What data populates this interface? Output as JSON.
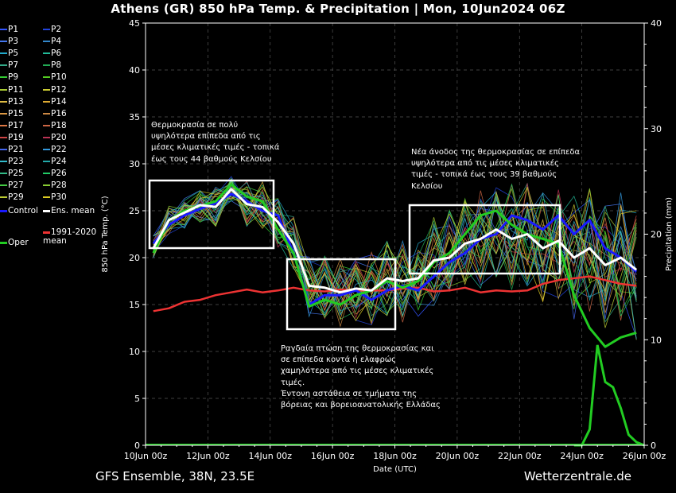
{
  "title": "Athens  (GR)  850 hPa Temp. & Precipitation | Mon, 10Jun2024 06Z",
  "footer": {
    "left": "GFS Ensemble, 38N, 23.5E",
    "right": "Wetterzentrale.de"
  },
  "colors": {
    "background": "#000000",
    "control": "#1a1aff",
    "ens_mean": "#ffffff",
    "oper": "#22cc22",
    "climatology": "#ee3333",
    "annotation_box": "#ffffff"
  },
  "legend": [
    {
      "label": "P1",
      "color": "#3355ff"
    },
    {
      "label": "P2",
      "color": "#2244dd"
    },
    {
      "label": "P3",
      "color": "#4477ee"
    },
    {
      "label": "P4",
      "color": "#3388cc"
    },
    {
      "label": "P5",
      "color": "#22aacc"
    },
    {
      "label": "P6",
      "color": "#22bb99"
    },
    {
      "label": "P7",
      "color": "#33aa88"
    },
    {
      "label": "P8",
      "color": "#22aa55"
    },
    {
      "label": "P9",
      "color": "#33cc33"
    },
    {
      "label": "P10",
      "color": "#55cc22"
    },
    {
      "label": "P11",
      "color": "#aacc33"
    },
    {
      "label": "P12",
      "color": "#cccc33"
    },
    {
      "label": "P13",
      "color": "#ddbb44"
    },
    {
      "label": "P14",
      "color": "#ddaa33"
    },
    {
      "label": "P15",
      "color": "#dd9944"
    },
    {
      "label": "P16",
      "color": "#cc8844"
    },
    {
      "label": "P17",
      "color": "#dd7744"
    },
    {
      "label": "P18",
      "color": "#cc6644"
    },
    {
      "label": "P19",
      "color": "#cc4444"
    },
    {
      "label": "P20",
      "color": "#bb3355"
    },
    {
      "label": "P21",
      "color": "#4466ee"
    },
    {
      "label": "P22",
      "color": "#3399dd"
    },
    {
      "label": "P23",
      "color": "#33bbcc"
    },
    {
      "label": "P24",
      "color": "#22aaaa"
    },
    {
      "label": "P25",
      "color": "#33bb88"
    },
    {
      "label": "P26",
      "color": "#22cc66"
    },
    {
      "label": "P27",
      "color": "#44cc44"
    },
    {
      "label": "P28",
      "color": "#88cc33"
    },
    {
      "label": "P29",
      "color": "#bbcc33"
    },
    {
      "label": "P30",
      "color": "#ddcc22"
    },
    {
      "label": "Control",
      "color": "#1a1aff"
    },
    {
      "label": "Ens. mean",
      "color": "#ffffff"
    },
    {
      "label": "Oper",
      "color": "#22cc22"
    },
    {
      "label": "1991-2020 mean",
      "color": "#ee3333"
    }
  ],
  "annotations": [
    {
      "id": "heat1",
      "lines": [
        "Θερμοκρασία σε πολύ",
        "υψηλότερα επίπεδα από τις",
        "μέσες κλιματικές τιμές - τοπικά",
        "έως τους 44 βαθμούς Κελσίου"
      ]
    },
    {
      "id": "drop",
      "lines": [
        "Ραγδαία πτώση της θερμοκρασίας και",
        "σε επίπεδα κοντά ή ελαφρώς",
        "χαμηλότερα από τις μέσες κλιματικές",
        "τιμές.",
        "Έντονη αστάθεια σε τμήματα της",
        "βόρειας και βορειοανατολικής Ελλάδας"
      ]
    },
    {
      "id": "heat2",
      "lines": [
        "Νέα άνοδος της θερμοκρασίας σε επίπεδα",
        "υψηλότερα από τις μέσες κλιματικές",
        "τιμές - τοπικά έως τους 39 βαθμούς",
        "Κελσίου"
      ]
    }
  ],
  "chart_data": {
    "type": "line",
    "ylabel_left": "850 hPa Temp. (°C)",
    "ylabel_right": "Precipitation (mm)",
    "xlabel": "Date (UTC)",
    "x_ticks": [
      "10Jun 00z",
      "12Jun 00z",
      "14Jun 00z",
      "16Jun 00z",
      "18Jun 00z",
      "20Jun 00z",
      "22Jun 00z",
      "24Jun 00z",
      "26Jun 00z"
    ],
    "x_range_hours": [
      0,
      384
    ],
    "ylim_left": [
      0,
      45
    ],
    "ylim_right": [
      0,
      40
    ],
    "y_ticks_left": [
      0,
      5,
      10,
      15,
      20,
      25,
      30,
      35,
      40,
      45
    ],
    "y_ticks_right": [
      0,
      10,
      20,
      30,
      40
    ],
    "grid": true,
    "x_hours": [
      6,
      18,
      30,
      42,
      54,
      66,
      78,
      90,
      102,
      114,
      126,
      138,
      150,
      162,
      174,
      186,
      198,
      210,
      222,
      234,
      246,
      258,
      270,
      282,
      294,
      306,
      318,
      330,
      342,
      354,
      366,
      378
    ],
    "series": [
      {
        "name": "Control",
        "values": [
          21.5,
          23.5,
          24.5,
          25.2,
          25.8,
          26.8,
          26.0,
          25.0,
          24.5,
          20.5,
          15.0,
          16.0,
          16.0,
          16.5,
          15.5,
          16.5,
          17.0,
          16.5,
          18.0,
          19.5,
          20.5,
          22.0,
          22.5,
          24.5,
          24.0,
          23.0,
          24.5,
          22.5,
          24.0,
          21.0,
          20.0,
          18.5
        ]
      },
      {
        "name": "Ens. mean",
        "values": [
          21.0,
          24.0,
          24.8,
          25.6,
          25.4,
          27.3,
          25.7,
          25.4,
          23.8,
          21.5,
          17.0,
          16.8,
          16.3,
          16.7,
          16.5,
          17.8,
          17.5,
          17.8,
          19.7,
          20.0,
          21.5,
          22.0,
          23.0,
          22.0,
          22.5,
          21.0,
          21.8,
          20.0,
          21.0,
          19.2,
          20.0,
          18.7
        ]
      },
      {
        "name": "Oper",
        "values": [
          20.5,
          24.0,
          25.0,
          25.5,
          26.0,
          27.8,
          26.5,
          26.0,
          23.0,
          20.5,
          14.8,
          15.5,
          15.0,
          16.0,
          16.5,
          17.5,
          16.8,
          17.5,
          19.5,
          20.5,
          22.5,
          24.5,
          25.0,
          23.5,
          22.5,
          22.0,
          21.5,
          16.0,
          12.5,
          10.5,
          11.5,
          12.0
        ]
      },
      {
        "name": "1991-2020 mean",
        "values": [
          14.3,
          14.6,
          15.3,
          15.5,
          16.0,
          16.3,
          16.6,
          16.3,
          16.5,
          16.8,
          16.5,
          16.4,
          16.6,
          16.5,
          16.5,
          16.5,
          16.7,
          16.8,
          16.4,
          16.5,
          16.8,
          16.3,
          16.5,
          16.4,
          16.5,
          17.2,
          17.6,
          17.8,
          18.0,
          17.6,
          17.2,
          17.0
        ]
      }
    ],
    "oper_precipitation": {
      "x_hours": [
        330,
        336,
        342,
        348,
        354,
        360,
        366,
        372,
        378,
        384
      ],
      "values": [
        0,
        0,
        1.5,
        9.5,
        6,
        5.5,
        3.5,
        1,
        0.3,
        0
      ]
    }
  }
}
